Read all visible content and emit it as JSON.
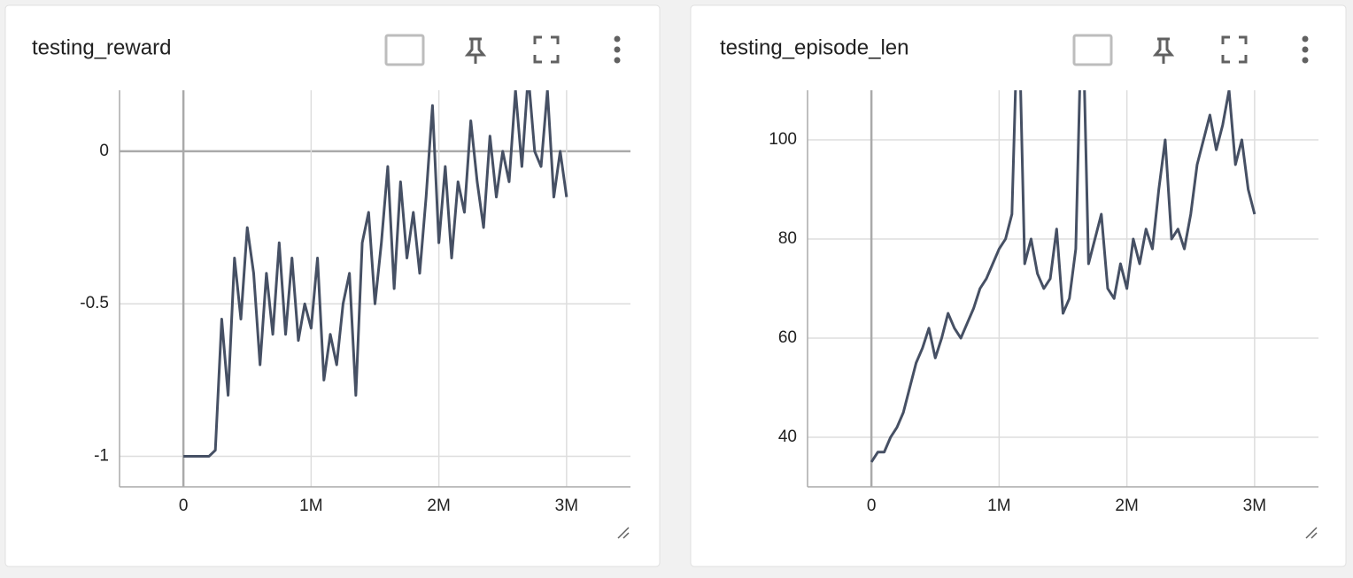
{
  "chart_data": [
    {
      "type": "line",
      "title": "testing_reward",
      "color": "#465064",
      "grid": true,
      "x": [
        0,
        50000,
        100000,
        150000,
        200000,
        250000,
        300000,
        350000,
        400000,
        450000,
        500000,
        550000,
        600000,
        650000,
        700000,
        750000,
        800000,
        850000,
        900000,
        950000,
        1000000,
        1050000,
        1100000,
        1150000,
        1200000,
        1250000,
        1300000,
        1350000,
        1400000,
        1450000,
        1500000,
        1550000,
        1600000,
        1650000,
        1700000,
        1750000,
        1800000,
        1850000,
        1900000,
        1950000,
        2000000,
        2050000,
        2100000,
        2150000,
        2200000,
        2250000,
        2300000,
        2350000,
        2400000,
        2450000,
        2500000,
        2550000,
        2600000,
        2650000,
        2700000,
        2750000,
        2800000,
        2850000,
        2900000,
        2950000,
        3000000
      ],
      "values": [
        -1,
        -1,
        -1,
        -1,
        -1,
        -0.98,
        -0.55,
        -0.8,
        -0.35,
        -0.55,
        -0.25,
        -0.4,
        -0.7,
        -0.4,
        -0.6,
        -0.3,
        -0.6,
        -0.35,
        -0.62,
        -0.5,
        -0.58,
        -0.35,
        -0.75,
        -0.6,
        -0.7,
        -0.5,
        -0.4,
        -0.8,
        -0.3,
        -0.2,
        -0.5,
        -0.3,
        -0.05,
        -0.45,
        -0.1,
        -0.35,
        -0.2,
        -0.4,
        -0.15,
        0.15,
        -0.3,
        -0.05,
        -0.35,
        -0.1,
        -0.2,
        0.1,
        -0.1,
        -0.25,
        0.05,
        -0.15,
        0,
        -0.1,
        0.2,
        -0.05,
        0.25,
        0,
        -0.05,
        0.2,
        -0.15,
        0,
        -0.15
      ],
      "xlim": [
        -500000,
        3500000
      ],
      "xticks": [
        0,
        {
          "value": 1000000,
          "label": "1M"
        },
        {
          "value": 2000000,
          "label": "2M"
        },
        {
          "value": 3000000,
          "label": "3M"
        }
      ],
      "ylim": [
        -1.1,
        0.2
      ],
      "yticks": [
        -1,
        -0.5,
        0
      ]
    },
    {
      "type": "line",
      "title": "testing_episode_len",
      "color": "#465064",
      "grid": true,
      "x": [
        0,
        50000,
        100000,
        150000,
        200000,
        250000,
        300000,
        350000,
        400000,
        450000,
        500000,
        550000,
        600000,
        650000,
        700000,
        750000,
        800000,
        850000,
        900000,
        950000,
        1000000,
        1050000,
        1100000,
        1150000,
        1200000,
        1250000,
        1300000,
        1350000,
        1400000,
        1450000,
        1500000,
        1550000,
        1600000,
        1650000,
        1700000,
        1750000,
        1800000,
        1850000,
        1900000,
        1950000,
        2000000,
        2050000,
        2100000,
        2150000,
        2200000,
        2250000,
        2300000,
        2350000,
        2400000,
        2450000,
        2500000,
        2550000,
        2600000,
        2650000,
        2700000,
        2750000,
        2800000,
        2850000,
        2900000,
        2950000,
        3000000
      ],
      "values": [
        35,
        37,
        37,
        40,
        42,
        45,
        50,
        55,
        58,
        62,
        56,
        60,
        65,
        62,
        60,
        63,
        66,
        70,
        72,
        75,
        78,
        80,
        85,
        130,
        75,
        80,
        73,
        70,
        72,
        82,
        65,
        68,
        78,
        130,
        75,
        80,
        85,
        70,
        68,
        75,
        70,
        80,
        75,
        82,
        78,
        90,
        100,
        80,
        82,
        78,
        85,
        95,
        100,
        105,
        98,
        103,
        110,
        95,
        100,
        90,
        85
      ],
      "xlim": [
        -500000,
        3500000
      ],
      "xticks": [
        0,
        {
          "value": 1000000,
          "label": "1M"
        },
        {
          "value": 2000000,
          "label": "2M"
        },
        {
          "value": 3000000,
          "label": "3M"
        }
      ],
      "ylim": [
        30,
        110
      ],
      "yticks": [
        40,
        60,
        80,
        100
      ]
    }
  ]
}
